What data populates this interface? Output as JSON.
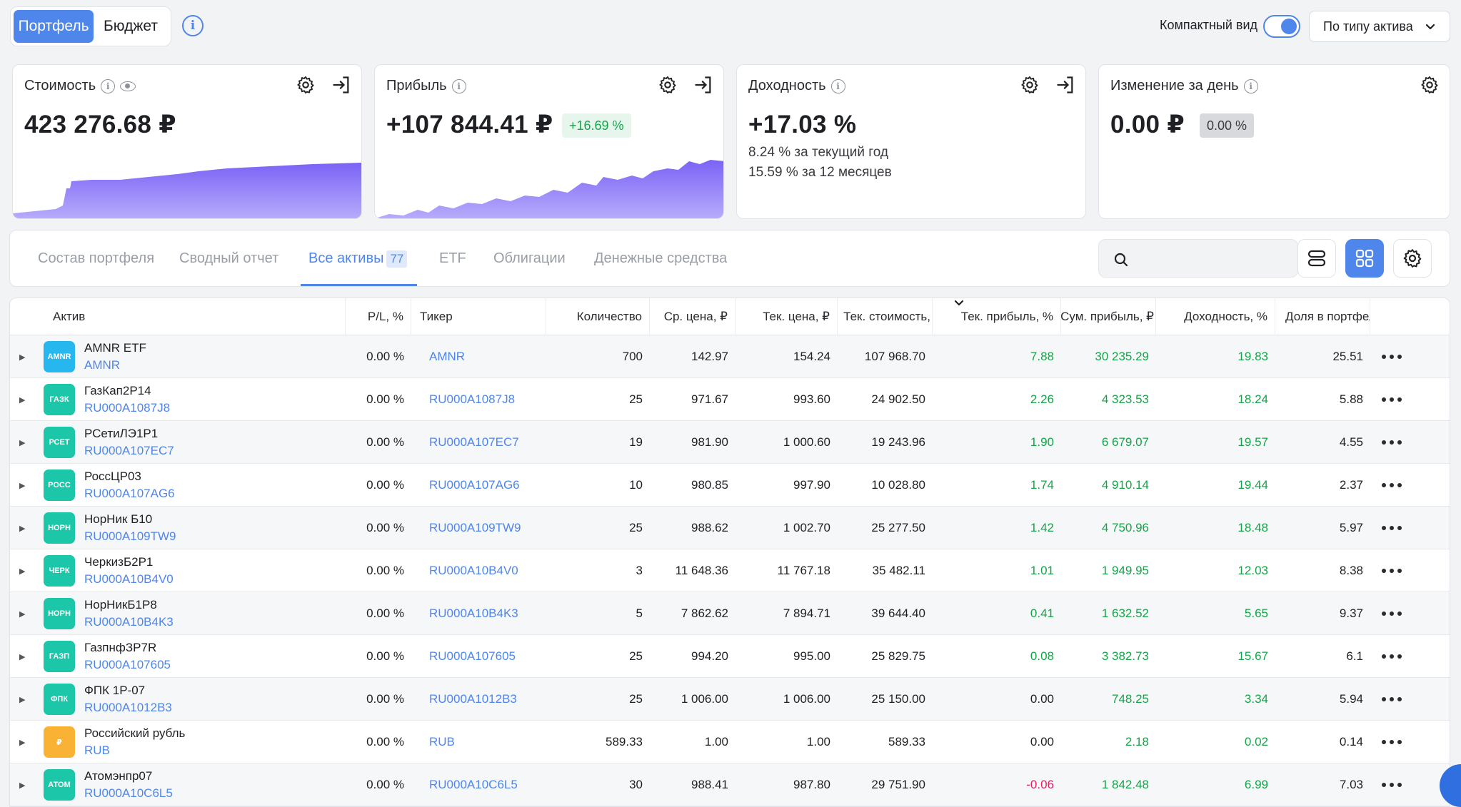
{
  "header": {
    "tabs": [
      {
        "label": "Портфель",
        "active": true
      },
      {
        "label": "Бюджет",
        "active": false
      }
    ],
    "compact_label": "Компактный вид",
    "group_select": "По типу актива"
  },
  "cards": {
    "value": {
      "title": "Стоимость",
      "amount": "423 276.68 ₽"
    },
    "profit": {
      "title": "Прибыль",
      "amount": "+107 844.41 ₽",
      "badge": "+16.69 %"
    },
    "yield": {
      "title": "Доходность",
      "amount": "+17.03 %",
      "line1": "8.24 % за текущий год",
      "line2": "15.59 % за 12 месяцев"
    },
    "daily": {
      "title": "Изменение за день",
      "amount": "0.00 ₽",
      "badge": "0.00 %"
    }
  },
  "tabs": {
    "items": [
      "Состав портфеля",
      "Сводный отчет",
      "Все активы",
      "ETF",
      "Облигации",
      "Денежные средства"
    ],
    "active_count": "77"
  },
  "table": {
    "columns": [
      "Актив",
      "P/L, %",
      "Тикер",
      "Количество",
      "Ср. цена, ₽",
      "Тек. цена, ₽",
      "Тек. стоимость,",
      "Тек. прибыль, %",
      "Сум. прибыль, ₽",
      "Доходность, %",
      "Доля в портфел"
    ],
    "rows": [
      {
        "logo": "AMNR",
        "color": "#27b7ef",
        "name": "AMNR ETF",
        "code": "AMNR",
        "pl": "0.00 %",
        "ticker": "AMNR",
        "qty": "700",
        "avg": "142.97",
        "cur": "154.24",
        "value": "107 968.70",
        "profit_pct": "7.88",
        "sum_profit": "30 235.29",
        "yield": "19.83",
        "share": "25.51",
        "sign": "pos"
      },
      {
        "logo": "ГАЗК",
        "color": "#1cc6a9",
        "name": "ГазКап2Р14",
        "code": "RU000A1087J8",
        "pl": "0.00 %",
        "ticker": "RU000A1087J8",
        "qty": "25",
        "avg": "971.67",
        "cur": "993.60",
        "value": "24 902.50",
        "profit_pct": "2.26",
        "sum_profit": "4 323.53",
        "yield": "18.24",
        "share": "5.88",
        "sign": "pos"
      },
      {
        "logo": "РСЕТ",
        "color": "#1cc6a9",
        "name": "РСетиЛЭ1Р1",
        "code": "RU000A107EC7",
        "pl": "0.00 %",
        "ticker": "RU000A107EC7",
        "qty": "19",
        "avg": "981.90",
        "cur": "1 000.60",
        "value": "19 243.96",
        "profit_pct": "1.90",
        "sum_profit": "6 679.07",
        "yield": "19.57",
        "share": "4.55",
        "sign": "pos"
      },
      {
        "logo": "РОСС",
        "color": "#1cc6a9",
        "name": "РоссЦР03",
        "code": "RU000A107AG6",
        "pl": "0.00 %",
        "ticker": "RU000A107AG6",
        "qty": "10",
        "avg": "980.85",
        "cur": "997.90",
        "value": "10 028.80",
        "profit_pct": "1.74",
        "sum_profit": "4 910.14",
        "yield": "19.44",
        "share": "2.37",
        "sign": "pos"
      },
      {
        "logo": "НОРН",
        "color": "#1cc6a9",
        "name": "НорНик Б10",
        "code": "RU000A109TW9",
        "pl": "0.00 %",
        "ticker": "RU000A109TW9",
        "qty": "25",
        "avg": "988.62",
        "cur": "1 002.70",
        "value": "25 277.50",
        "profit_pct": "1.42",
        "sum_profit": "4 750.96",
        "yield": "18.48",
        "share": "5.97",
        "sign": "pos"
      },
      {
        "logo": "ЧЕРК",
        "color": "#1cc6a9",
        "name": "ЧеркизБ2Р1",
        "code": "RU000A10B4V0",
        "pl": "0.00 %",
        "ticker": "RU000A10B4V0",
        "qty": "3",
        "avg": "11 648.36",
        "cur": "11 767.18",
        "value": "35 482.11",
        "profit_pct": "1.01",
        "sum_profit": "1 949.95",
        "yield": "12.03",
        "share": "8.38",
        "sign": "pos"
      },
      {
        "logo": "НОРН",
        "color": "#1cc6a9",
        "name": "НорНикБ1Р8",
        "code": "RU000A10B4K3",
        "pl": "0.00 %",
        "ticker": "RU000A10B4K3",
        "qty": "5",
        "avg": "7 862.62",
        "cur": "7 894.71",
        "value": "39 644.40",
        "profit_pct": "0.41",
        "sum_profit": "1 632.52",
        "yield": "5.65",
        "share": "9.37",
        "sign": "pos"
      },
      {
        "logo": "ГАЗП",
        "color": "#1cc6a9",
        "name": "ГазпнфЗР7R",
        "code": "RU000A107605",
        "pl": "0.00 %",
        "ticker": "RU000A107605",
        "qty": "25",
        "avg": "994.20",
        "cur": "995.00",
        "value": "25 829.75",
        "profit_pct": "0.08",
        "sum_profit": "3 382.73",
        "yield": "15.67",
        "share": "6.1",
        "sign": "pos"
      },
      {
        "logo": "ФПК",
        "color": "#1cc6a9",
        "name": "ФПК 1Р-07",
        "code": "RU000A1012B3",
        "pl": "0.00 %",
        "ticker": "RU000A1012B3",
        "qty": "25",
        "avg": "1 006.00",
        "cur": "1 006.00",
        "value": "25 150.00",
        "profit_pct": "0.00",
        "sum_profit": "748.25",
        "yield": "3.34",
        "share": "5.94",
        "sign": "zero"
      },
      {
        "logo": "₽",
        "color": "#f9b234",
        "name": "Российский рубль",
        "code": "RUB",
        "pl": "0.00 %",
        "ticker": "RUB",
        "qty": "589.33",
        "avg": "1.00",
        "cur": "1.00",
        "value": "589.33",
        "profit_pct": "0.00",
        "sum_profit": "2.18",
        "yield": "0.02",
        "share": "0.14",
        "sign": "zero"
      },
      {
        "logo": "АТОМ",
        "color": "#1cc6a9",
        "name": "Атомэнпр07",
        "code": "RU000A10C6L5",
        "pl": "0.00 %",
        "ticker": "RU000A10C6L5",
        "qty": "30",
        "avg": "988.41",
        "cur": "987.80",
        "value": "29 751.90",
        "profit_pct": "-0.06",
        "sum_profit": "1 842.48",
        "yield": "6.99",
        "share": "7.03",
        "sign": "neg"
      }
    ]
  }
}
